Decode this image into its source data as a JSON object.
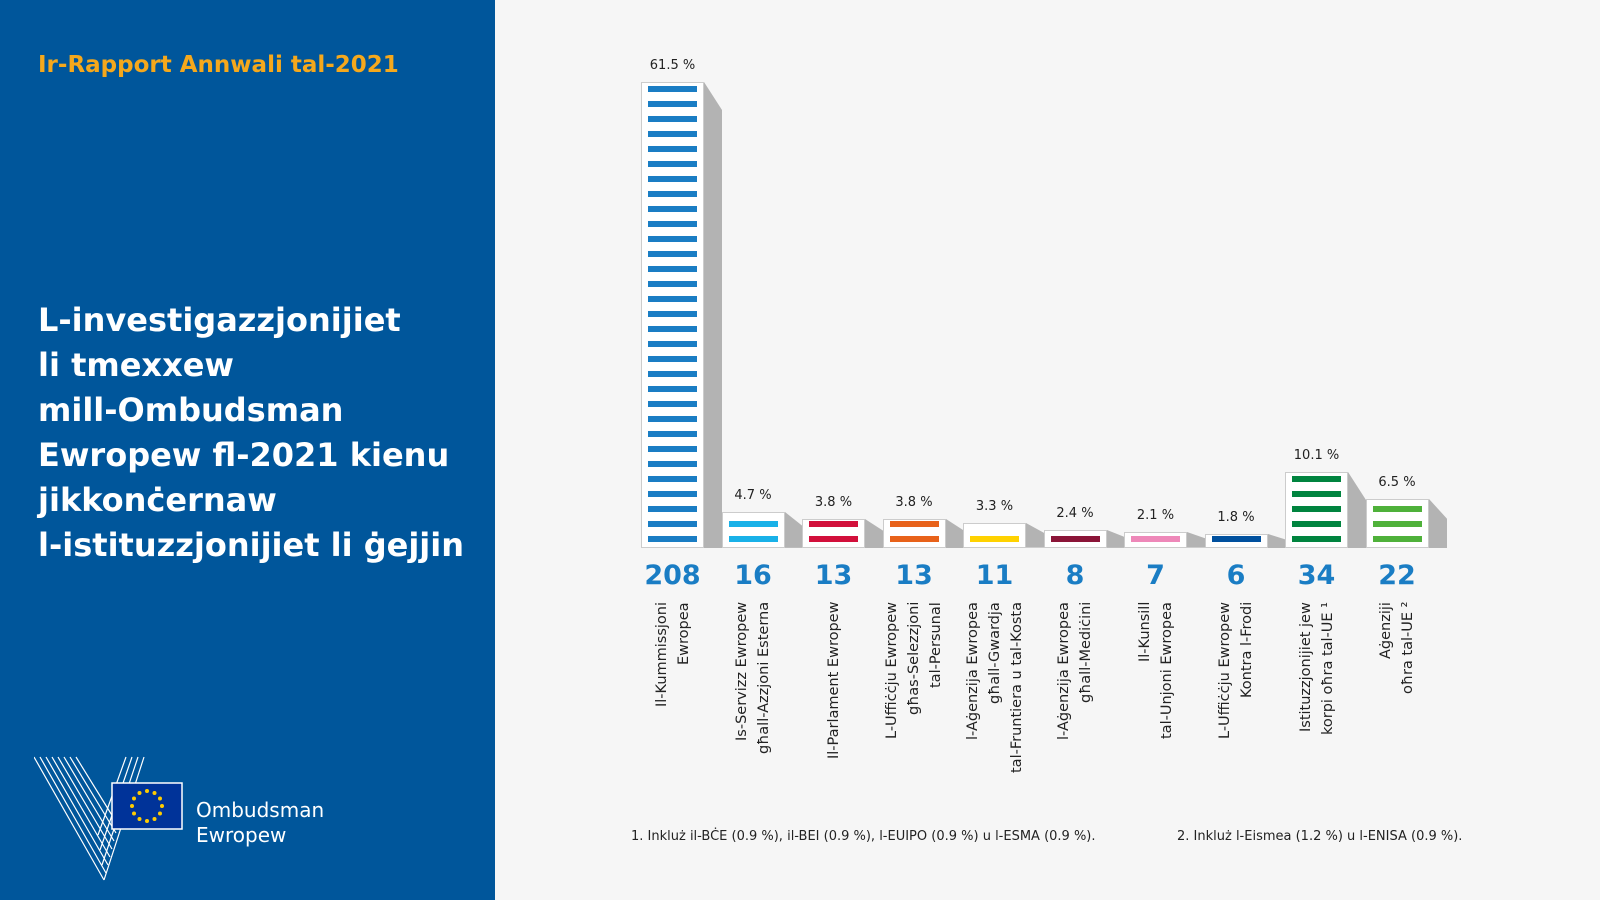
{
  "sidebar": {
    "report_title": "Ir-Rapport Annwali tal-2021",
    "heading_lines": [
      "L-investigazzjonijiet",
      "li tmexxew",
      "mill-Ombudsman",
      "Ewropew fl-2021 kienu",
      "jikkonċernaw",
      "l-istituzzjonijiet li ġejjin"
    ],
    "logo_text": [
      "Ombudsman",
      "Ewropew"
    ]
  },
  "chart_data": {
    "type": "bar",
    "title": "",
    "xlabel": "",
    "ylabel": "",
    "ylim": [
      0,
      208
    ],
    "categories": [
      [
        "Il-Kummissjoni",
        "Ewropea"
      ],
      [
        "Is-Servizz Ewropew",
        "għall-Azzjoni Esterna"
      ],
      [
        "Il-Parlament Ewropew"
      ],
      [
        "L-Uffiċċju Ewropew",
        "għas-Selezzjoni",
        "tal-Persunal"
      ],
      [
        "l-Aġenzija Ewropea",
        "għall-Gwardja",
        "tal-Fruntiera u tal-Kosta"
      ],
      [
        "l-Aġenzija Ewropea",
        "għall-Mediċini"
      ],
      [
        "Il-Kunsill",
        "tal-Unjoni Ewropea"
      ],
      [
        "L-Uffiċċju Ewropew",
        "Kontra l-Frodi"
      ],
      [
        "Istituzzjonijiet jew",
        "korpi oħra tal-UE ¹"
      ],
      [
        "Aġenziji",
        "oħra tal-UE ²"
      ]
    ],
    "values": [
      208,
      16,
      13,
      13,
      11,
      8,
      7,
      6,
      34,
      22
    ],
    "percent_labels": [
      "61.5 %",
      "4.7 %",
      "3.8 %",
      "3.8 %",
      "3.3 %",
      "2.4 %",
      "2.1 %",
      "1.8 %",
      "10.1 %",
      "6.5 %"
    ],
    "colors": [
      "#1a7dc4",
      "#19b1e8",
      "#d2103b",
      "#e8621a",
      "#ffd200",
      "#8b1538",
      "#ee88b9",
      "#00509e",
      "#00843f",
      "#4fb13a"
    ],
    "footnotes": [
      "1.   Inkluż il-BĊE (0.9 %), il-BEI (0.9 %), l-EUIPO (0.9 %) u l-ESMA (0.9 %).",
      "2.   Inkluż l-Eismea (1.2 %) u l-ENISA (0.9 %)."
    ]
  }
}
